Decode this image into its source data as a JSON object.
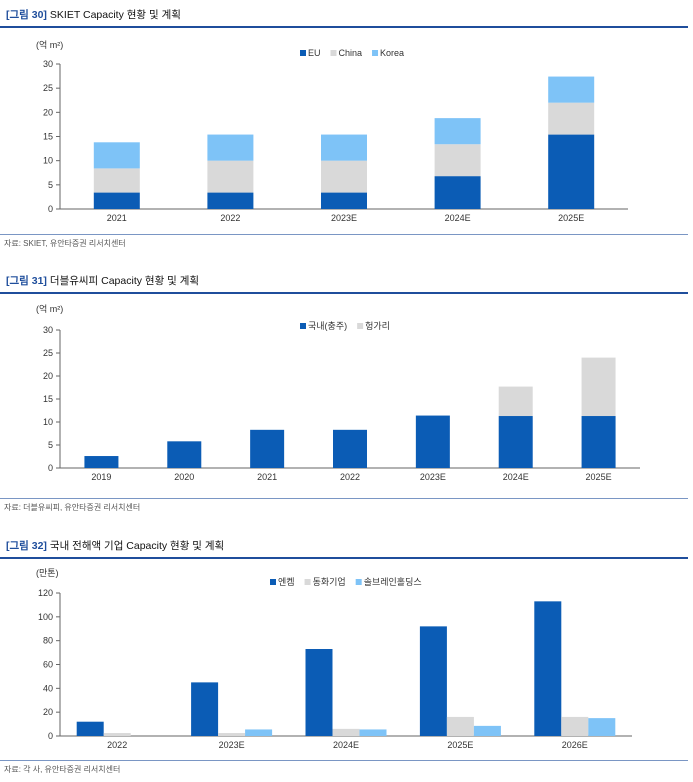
{
  "figures": [
    {
      "label": "[그림 30]",
      "title": "SKIET Capacity 현황 및 계획",
      "source": "자료: SKIET, 유안타증권 리서치센터"
    },
    {
      "label": "[그림 31]",
      "title": "더블유씨피 Capacity 현황 및 계획",
      "source": "자료: 더블유씨피, 유안타증권 리서치센터"
    },
    {
      "label": "[그림 32]",
      "title": "국내 전해액 기업 Capacity 현황 및 계획",
      "source": "자료: 각 사, 유안타증권 리서치센터"
    }
  ],
  "chart_data": [
    {
      "type": "bar",
      "stacked": true,
      "unit_label": "(억 m²)",
      "categories": [
        "2021",
        "2022",
        "2023E",
        "2024E",
        "2025E"
      ],
      "series": [
        {
          "name": "EU",
          "color": "#0b5cb5",
          "values": [
            3.4,
            3.4,
            3.4,
            6.8,
            15.4
          ]
        },
        {
          "name": "China",
          "color": "#d9d9d9",
          "values": [
            5.0,
            6.6,
            6.6,
            6.6,
            6.6
          ]
        },
        {
          "name": "Korea",
          "color": "#7ec3f7",
          "values": [
            5.4,
            5.4,
            5.4,
            5.4,
            5.4
          ]
        }
      ],
      "yticks": [
        0,
        5,
        10,
        15,
        20,
        25,
        30
      ],
      "ylim": [
        0,
        30
      ],
      "legend": "top-right"
    },
    {
      "type": "bar",
      "stacked": true,
      "unit_label": "(억 m²)",
      "categories": [
        "2019",
        "2020",
        "2021",
        "2022",
        "2023E",
        "2024E",
        "2025E"
      ],
      "series": [
        {
          "name": "국내(충주)",
          "color": "#0b5cb5",
          "values": [
            2.6,
            5.8,
            8.3,
            8.3,
            11.4,
            11.3,
            11.3
          ]
        },
        {
          "name": "헝가리",
          "color": "#d9d9d9",
          "values": [
            0,
            0,
            0,
            0,
            0,
            6.4,
            12.7
          ]
        }
      ],
      "yticks": [
        0,
        5,
        10,
        15,
        20,
        25,
        30
      ],
      "ylim": [
        0,
        30
      ],
      "legend": "top-right"
    },
    {
      "type": "bar",
      "stacked": false,
      "unit_label": "(만톤)",
      "categories": [
        "2022",
        "2023E",
        "2024E",
        "2025E",
        "2026E"
      ],
      "series": [
        {
          "name": "엔켐",
          "color": "#0b5cb5",
          "values": [
            12,
            45,
            73,
            92,
            113
          ]
        },
        {
          "name": "동화기업",
          "color": "#d9d9d9",
          "values": [
            2.5,
            2.5,
            6,
            16,
            16
          ]
        },
        {
          "name": "솔브레인홀딩스",
          "color": "#7ec3f7",
          "values": [
            0,
            5.5,
            5.5,
            8.5,
            15
          ]
        }
      ],
      "yticks": [
        0,
        20,
        40,
        60,
        80,
        100,
        120
      ],
      "ylim": [
        0,
        120
      ],
      "legend": "top-right"
    }
  ]
}
